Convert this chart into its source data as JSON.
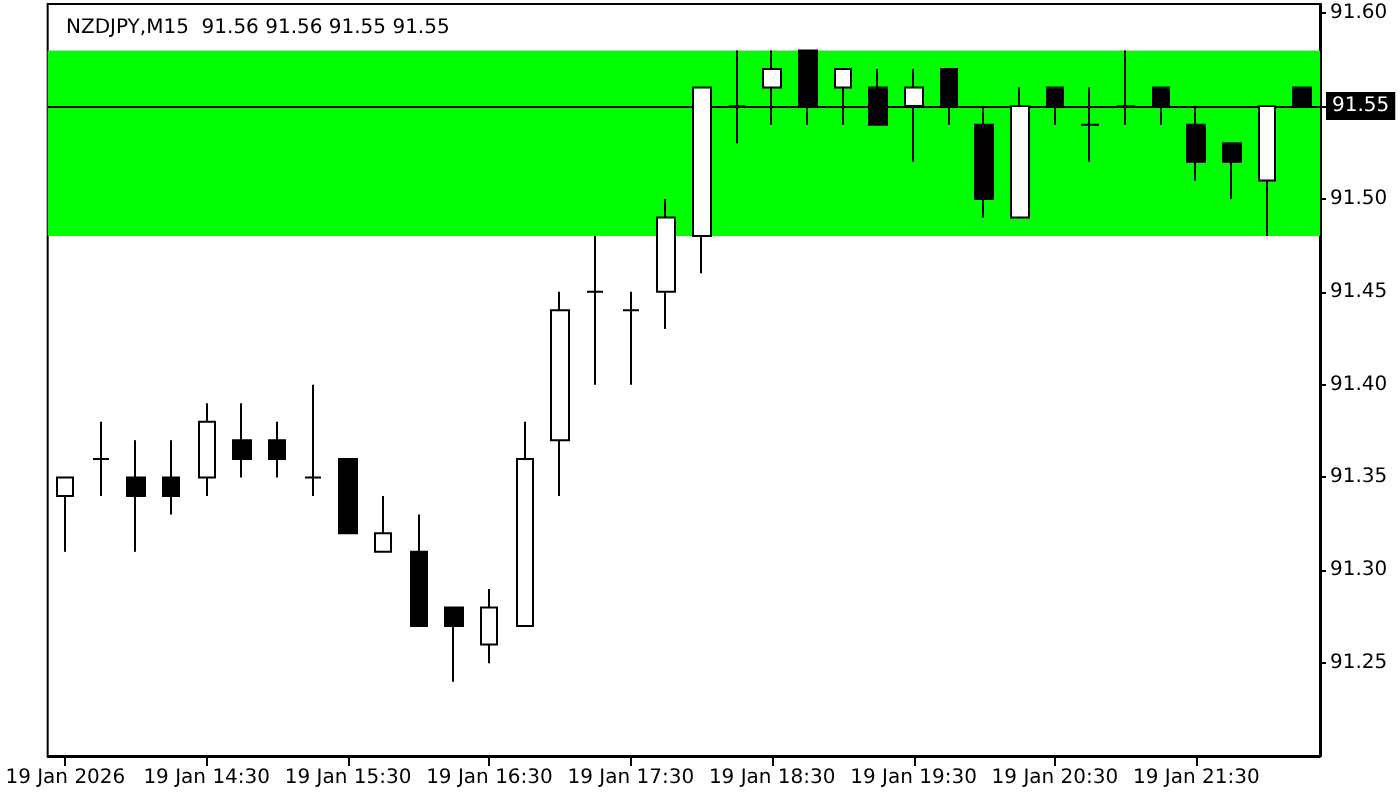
{
  "chart_data": {
    "type": "candlestick",
    "title": "NZDJPY,M15  91.56 91.56 91.55 91.55",
    "categories": [
      "19 Jan 2026",
      null,
      null,
      null,
      "19 Jan 14:30",
      null,
      null,
      null,
      "19 Jan 15:30",
      null,
      null,
      null,
      "19 Jan 16:30",
      null,
      null,
      null,
      "19 Jan 17:30",
      null,
      null,
      null,
      "19 Jan 18:30",
      null,
      null,
      null,
      "19 Jan 19:30",
      null,
      null,
      null,
      "19 Jan 20:30",
      null,
      null,
      null,
      "19 Jan 21:30",
      null,
      null,
      null
    ],
    "ohlc": [
      [
        91.34,
        91.35,
        91.31,
        91.35
      ],
      [
        91.36,
        91.38,
        91.34,
        91.36
      ],
      [
        91.35,
        91.37,
        91.31,
        91.34
      ],
      [
        91.35,
        91.37,
        91.33,
        91.34
      ],
      [
        91.35,
        91.39,
        91.34,
        91.38
      ],
      [
        91.37,
        91.39,
        91.35,
        91.36
      ],
      [
        91.37,
        91.38,
        91.35,
        91.36
      ],
      [
        91.35,
        91.4,
        91.34,
        91.35
      ],
      [
        91.36,
        91.36,
        91.32,
        91.32
      ],
      [
        91.31,
        91.34,
        91.31,
        91.32
      ],
      [
        91.31,
        91.33,
        91.27,
        91.27
      ],
      [
        91.28,
        91.28,
        91.24,
        91.27
      ],
      [
        91.26,
        91.29,
        91.25,
        91.28
      ],
      [
        91.27,
        91.38,
        91.27,
        91.36
      ],
      [
        91.37,
        91.45,
        91.34,
        91.44
      ],
      [
        91.45,
        91.48,
        91.4,
        91.45
      ],
      [
        91.44,
        91.45,
        91.4,
        91.44
      ],
      [
        91.45,
        91.5,
        91.43,
        91.49
      ],
      [
        91.48,
        91.56,
        91.46,
        91.56
      ],
      [
        91.55,
        91.58,
        91.53,
        91.55
      ],
      [
        91.56,
        91.58,
        91.54,
        91.57
      ],
      [
        91.58,
        91.58,
        91.54,
        91.55
      ],
      [
        91.56,
        91.57,
        91.54,
        91.57
      ],
      [
        91.56,
        91.57,
        91.54,
        91.54
      ],
      [
        91.55,
        91.57,
        91.52,
        91.56
      ],
      [
        91.57,
        91.57,
        91.54,
        91.55
      ],
      [
        91.54,
        91.55,
        91.49,
        91.5
      ],
      [
        91.49,
        91.56,
        91.49,
        91.55
      ],
      [
        91.56,
        91.56,
        91.54,
        91.55
      ],
      [
        91.54,
        91.56,
        91.52,
        91.54
      ],
      [
        91.55,
        91.58,
        91.54,
        91.55
      ],
      [
        91.56,
        91.56,
        91.54,
        91.55
      ],
      [
        91.54,
        91.55,
        91.51,
        91.52
      ],
      [
        91.53,
        91.53,
        91.5,
        91.52
      ],
      [
        91.51,
        91.55,
        91.48,
        91.55
      ],
      [
        91.56,
        91.56,
        91.55,
        91.55
      ]
    ],
    "ylim": [
      91.2,
      91.605
    ],
    "yticks": [
      91.25,
      {
        "value": 91.3,
        "label": "91.30"
      },
      91.35,
      {
        "value": 91.4,
        "label": "91.40"
      },
      91.45,
      {
        "value": 91.5,
        "label": "91.50"
      },
      {
        "value": 91.55,
        "label": null
      },
      {
        "value": 91.6,
        "label": "91.60"
      }
    ],
    "grid": false,
    "ref_lines": [
      {
        "axis": "y",
        "value": 91.55,
        "label": "91.55",
        "color": "#000000"
      }
    ],
    "bands": [
      {
        "axis": "y",
        "from": 91.48,
        "to": 91.58,
        "color": "#00ff00"
      }
    ]
  }
}
